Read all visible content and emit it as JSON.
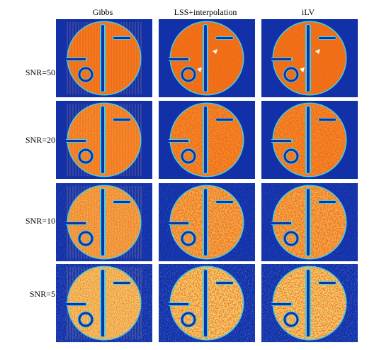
{
  "columns": [
    {
      "id": "gibbs",
      "label": "Gibbs"
    },
    {
      "id": "lss",
      "label": "LSS+interpolation"
    },
    {
      "id": "ilv",
      "label": "iLV"
    }
  ],
  "rows": [
    {
      "id": "snr50",
      "label": "SNR=50",
      "noise_level": 1
    },
    {
      "id": "snr20",
      "label": "SNR=20",
      "noise_level": 2
    },
    {
      "id": "snr10",
      "label": "SNR=10",
      "noise_level": 3
    },
    {
      "id": "snr5",
      "label": "SNR=5",
      "noise_level": 4
    }
  ],
  "colors": {
    "background_blue": "#1230a8",
    "phantom_orange": "#f06a14",
    "edge_cyan": "#3fd0e8",
    "noise_yellow": "#f2c23a",
    "artifact_white": "#ffffff"
  },
  "annotations": {
    "arrowheads_rows": [
      "snr50"
    ],
    "arrowheads_columns": [
      "lss",
      "ilv"
    ],
    "gibbs_ringing_column": "gibbs"
  }
}
